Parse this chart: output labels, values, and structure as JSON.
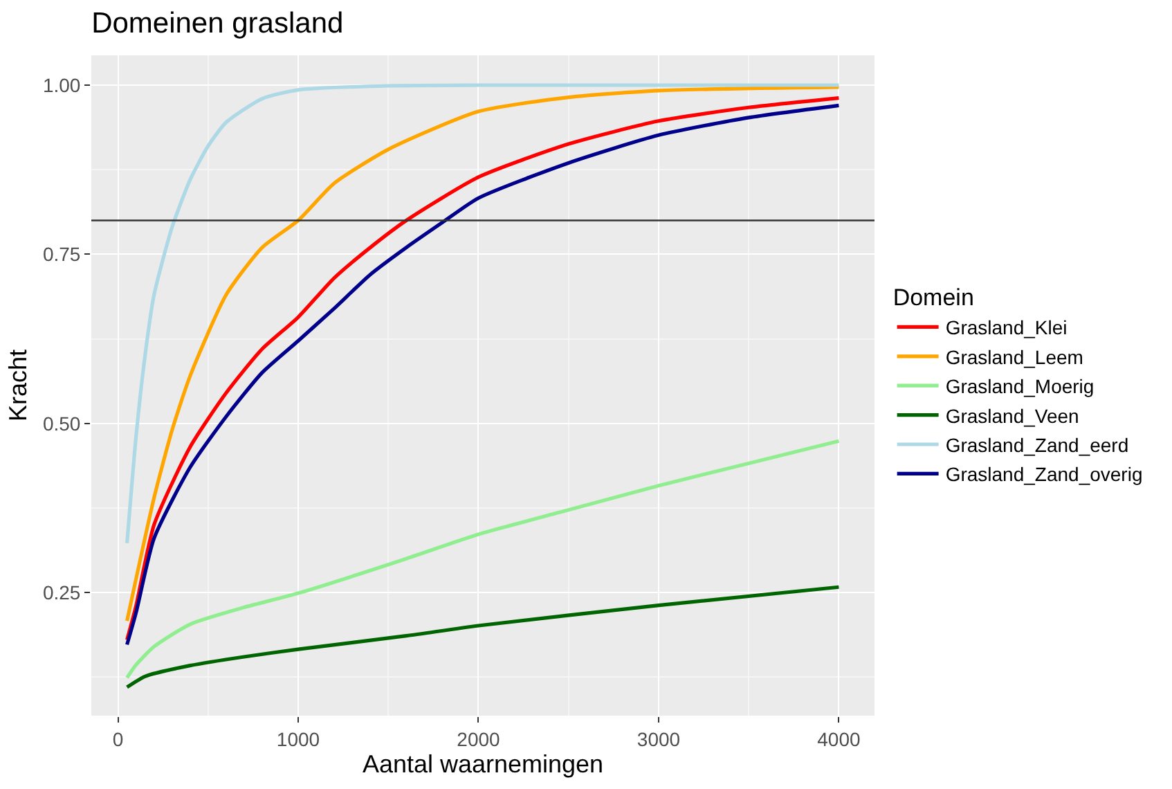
{
  "chart_data": {
    "type": "line",
    "title": "Domeinen grasland",
    "xlabel": "Aantal waarnemingen",
    "ylabel": "Kracht",
    "legend_title": "Domein",
    "legend": "right",
    "grid": true,
    "marker": "none",
    "line_style": "solid",
    "xlim": [
      -148,
      4198
    ],
    "ylim": [
      0.068,
      1.044
    ],
    "xticks": [
      0,
      1000,
      2000,
      3000,
      4000
    ],
    "yticks": [
      {
        "value": 0.25,
        "label": "0.25"
      },
      {
        "value": 0.5,
        "label": "0.50"
      },
      {
        "value": 0.75,
        "label": "0.75"
      },
      {
        "value": 1.0,
        "label": "1.00"
      }
    ],
    "ref_lines": [
      {
        "axis": "y",
        "value": 0.8,
        "label": null,
        "color": "#333333"
      }
    ],
    "series": [
      {
        "name": "Grasland_Klei",
        "color": "#ff0000",
        "x": [
          50,
          100,
          200,
          400,
          600,
          800,
          1000,
          1200,
          1400,
          1600,
          2000,
          2500,
          3000,
          3500,
          4000
        ],
        "values": [
          0.18,
          0.23,
          0.35,
          0.465,
          0.545,
          0.61,
          0.657,
          0.715,
          0.76,
          0.8,
          0.864,
          0.913,
          0.947,
          0.967,
          0.981
        ]
      },
      {
        "name": "Grasland_Leem",
        "color": "#ffa500",
        "x": [
          50,
          100,
          200,
          300,
          400,
          600,
          800,
          1000,
          1200,
          1500,
          2000,
          2500,
          3000,
          4000
        ],
        "values": [
          0.208,
          0.27,
          0.39,
          0.49,
          0.57,
          0.69,
          0.76,
          0.8,
          0.855,
          0.905,
          0.961,
          0.982,
          0.992,
          0.997
        ]
      },
      {
        "name": "Grasland_Moerig",
        "color": "#90ee90",
        "x": [
          50,
          100,
          200,
          400,
          700,
          1000,
          1600,
          2000,
          2500,
          3000,
          3500,
          4000
        ],
        "values": [
          0.124,
          0.143,
          0.17,
          0.203,
          0.228,
          0.249,
          0.3,
          0.336,
          0.372,
          0.408,
          0.441,
          0.474
        ]
      },
      {
        "name": "Grasland_Veen",
        "color": "#006400",
        "x": [
          50,
          150,
          400,
          700,
          1000,
          1600,
          2000,
          3000,
          4000
        ],
        "values": [
          0.11,
          0.126,
          0.142,
          0.155,
          0.166,
          0.186,
          0.201,
          0.231,
          0.258
        ]
      },
      {
        "name": "Grasland_Zand_eerd",
        "color": "#add8e6",
        "x": [
          50,
          100,
          150,
          200,
          300,
          400,
          500,
          600,
          800,
          1000,
          1500,
          2000,
          4000
        ],
        "values": [
          0.323,
          0.48,
          0.6,
          0.69,
          0.79,
          0.86,
          0.91,
          0.945,
          0.98,
          0.993,
          0.999,
          1.0,
          1.0
        ]
      },
      {
        "name": "Grasland_Zand_overig",
        "color": "#00008b",
        "x": [
          50,
          100,
          200,
          400,
          600,
          800,
          1000,
          1200,
          1400,
          1600,
          1800,
          2000,
          2500,
          3000,
          3500,
          4000
        ],
        "values": [
          0.173,
          0.22,
          0.33,
          0.435,
          0.51,
          0.575,
          0.622,
          0.67,
          0.72,
          0.76,
          0.797,
          0.833,
          0.885,
          0.926,
          0.952,
          0.97
        ]
      }
    ]
  }
}
